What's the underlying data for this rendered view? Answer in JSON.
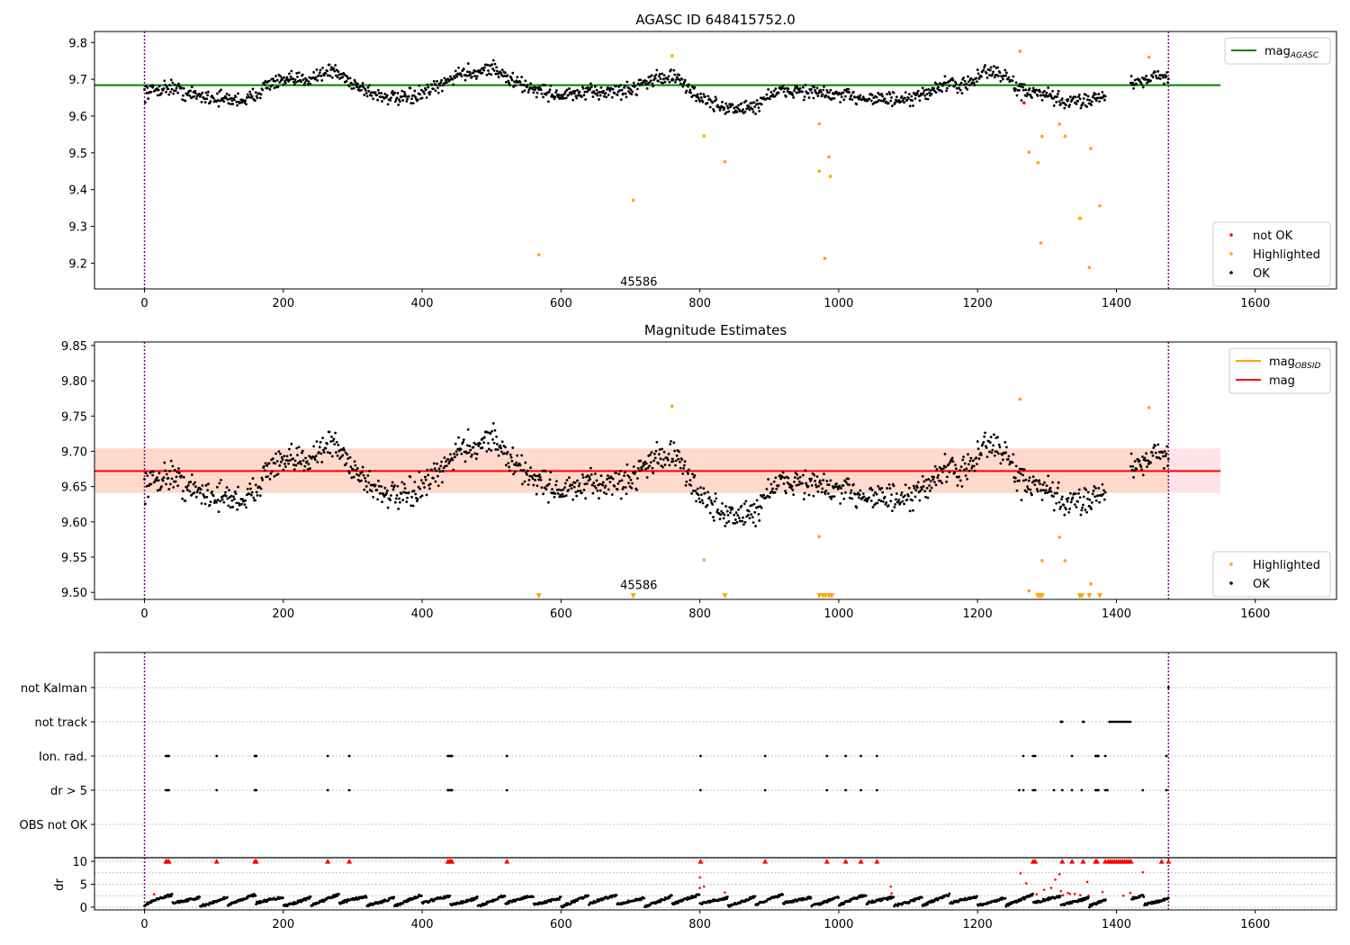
{
  "chart_data": [
    {
      "type": "scatter",
      "title": "AGASC ID 648415752.0",
      "xlim": [
        -72,
        1717
      ],
      "ylim": [
        9.13,
        9.83
      ],
      "xticks": [
        0,
        200,
        400,
        600,
        800,
        1000,
        1200,
        1400,
        1600
      ],
      "yticks": [
        9.2,
        9.3,
        9.4,
        9.5,
        9.6,
        9.7,
        9.8
      ],
      "hline": {
        "name": "mag",
        "name_sub": "AGASC",
        "value": 9.684,
        "x_end": 1550,
        "color": "#008000"
      },
      "vlines": [
        0,
        1475
      ],
      "vline_color": "#800080",
      "annotation": {
        "text": "45586",
        "x": 712,
        "y": 9.148
      },
      "legend_upper": {
        "placement": "upper-right",
        "entries": [
          {
            "label": "mag",
            "sub": "AGASC",
            "color": "#008000",
            "kind": "line"
          }
        ]
      },
      "legend_lower": {
        "placement": "lower-right",
        "entries": [
          {
            "label": "not OK",
            "color": "#ff0000",
            "kind": "dot"
          },
          {
            "label": "Highlighted",
            "color": "#ffa500",
            "kind": "dot"
          },
          {
            "label": "OK",
            "color": "#000000",
            "kind": "dot"
          }
        ]
      },
      "series": [
        {
          "name": "OK",
          "color": "#000000",
          "model": "lightcurve",
          "x_range": [
            0,
            1475
          ],
          "n": 1380,
          "offset": 0.0
        },
        {
          "name": "Highlighted",
          "color": "#ffa500",
          "points": [
            [
              568,
              9.223
            ],
            [
              704,
              9.371
            ],
            [
              760,
              9.764
            ],
            [
              806,
              9.546
            ],
            [
              836,
              9.476
            ],
            [
              972,
              9.579
            ],
            [
              972,
              9.45
            ],
            [
              980,
              9.213
            ],
            [
              986,
              9.489
            ],
            [
              988,
              9.436
            ],
            [
              1261,
              9.776
            ],
            [
              1274,
              9.502
            ],
            [
              1287,
              9.473
            ],
            [
              1291,
              9.255
            ],
            [
              1293,
              9.545
            ],
            [
              1318,
              9.578
            ],
            [
              1326,
              9.545
            ],
            [
              1347,
              9.322
            ],
            [
              1348,
              9.322
            ],
            [
              1361,
              9.188
            ],
            [
              1363,
              9.512
            ],
            [
              1376,
              9.356
            ],
            [
              1447,
              9.76
            ]
          ]
        },
        {
          "name": "not OK",
          "color": "#ff0000",
          "points": [
            [
              1267,
              9.636
            ]
          ]
        }
      ]
    },
    {
      "type": "scatter",
      "title": "Magnitude Estimates",
      "xlim": [
        -72,
        1717
      ],
      "ylim": [
        9.49,
        9.855
      ],
      "xticks": [
        0,
        200,
        400,
        600,
        800,
        1000,
        1200,
        1400,
        1600
      ],
      "yticks": [
        9.5,
        9.55,
        9.6,
        9.65,
        9.7,
        9.75,
        9.8,
        9.85
      ],
      "hline": {
        "name": "mag",
        "value": 9.672,
        "x_end": 1550,
        "color": "#ff0000"
      },
      "band_pink": {
        "low": 9.641,
        "high": 9.704,
        "x_end": 1550,
        "color": "#ffc0cb"
      },
      "band_orange": {
        "low": 9.641,
        "high": 9.704,
        "x_end": 1475,
        "color": "#ffd2b4"
      },
      "vlines": [
        0,
        1475
      ],
      "vline_color": "#800080",
      "annotation": {
        "text": "45586",
        "x": 712,
        "y": 9.502
      },
      "legend_upper": {
        "placement": "upper-right",
        "entries": [
          {
            "label": "mag",
            "sub": "OBSID",
            "color": "#ffa500",
            "kind": "line"
          },
          {
            "label": "mag",
            "color": "#ff0000",
            "kind": "line"
          }
        ]
      },
      "legend_lower": {
        "placement": "lower-right",
        "entries": [
          {
            "label": "Highlighted",
            "color": "#ffa500",
            "kind": "dot"
          },
          {
            "label": "OK",
            "color": "#000000",
            "kind": "dot"
          }
        ]
      },
      "series": [
        {
          "name": "OK",
          "color": "#000000",
          "model": "lightcurve",
          "x_range": [
            0,
            1475
          ],
          "n": 1380,
          "offset": -0.012
        },
        {
          "name": "Highlighted",
          "color": "#ffa500",
          "points": [
            [
              760,
              9.764
            ],
            [
              806,
              9.546
            ],
            [
              972,
              9.579
            ],
            [
              1261,
              9.774
            ],
            [
              1274,
              9.502
            ],
            [
              1293,
              9.545
            ],
            [
              1318,
              9.578
            ],
            [
              1326,
              9.545
            ],
            [
              1363,
              9.512
            ],
            [
              1447,
              9.762
            ]
          ]
        },
        {
          "name": "Highlighted (off scale)",
          "color": "#ffa500",
          "marker": "triangle-down",
          "y": 9.495,
          "x": [
            568,
            704,
            836,
            972,
            977,
            981,
            986,
            990,
            1287,
            1290,
            1293,
            1347,
            1350,
            1361,
            1376
          ]
        }
      ]
    },
    {
      "type": "scatter",
      "categories": [
        "not Kalman",
        "not track",
        "Ion. rad.",
        "dr > 5",
        "OBS not OK"
      ],
      "xlim": [
        -72,
        1717
      ],
      "xticks": [
        0,
        200,
        400,
        600,
        800,
        1000,
        1200,
        1400,
        1600
      ],
      "vlines": [
        0,
        1475
      ],
      "vline_color": "#800080",
      "series": [
        {
          "name": "not Kalman",
          "x": [
            1475
          ]
        },
        {
          "name": "not track",
          "x": [
            1320,
            1321,
            1322,
            1352,
            1353,
            1390,
            1393,
            1396,
            1399,
            1402,
            1405,
            1408,
            1411,
            1414,
            1417,
            1420
          ]
        },
        {
          "name": "Ion. rad.",
          "x": [
            31,
            33,
            35,
            104,
            159,
            161,
            264,
            295,
            437,
            439,
            441,
            443,
            522,
            801,
            894,
            983,
            1010,
            1032,
            1055,
            1266,
            1280,
            1283,
            1336,
            1370,
            1372,
            1374,
            1384,
            1472
          ]
        },
        {
          "name": "dr > 5",
          "x": [
            31,
            33,
            35,
            104,
            159,
            161,
            264,
            295,
            437,
            439,
            441,
            443,
            522,
            801,
            894,
            983,
            1010,
            1032,
            1055,
            1260,
            1266,
            1280,
            1283,
            1310,
            1322,
            1336,
            1350,
            1370,
            1372,
            1374,
            1384,
            1387,
            1438,
            1472
          ]
        }
      ]
    },
    {
      "type": "scatter",
      "ylabel": "dr",
      "xlim": [
        -72,
        1717
      ],
      "ylim": [
        -0.6,
        10.8
      ],
      "xticks": [
        0,
        200,
        400,
        600,
        800,
        1000,
        1200,
        1400,
        1600
      ],
      "yticks": [
        0,
        5,
        10
      ],
      "vlines": [
        0,
        1475
      ],
      "vline_color": "#800080",
      "series": [
        {
          "name": "dr",
          "color": "#000000",
          "model": "drcurve",
          "x_range": [
            0,
            1475
          ],
          "n": 1450
        },
        {
          "name": "dr > 5",
          "color": "#ff0000",
          "points": [
            [
              14,
              2.8
            ],
            [
              800,
              6.5
            ],
            [
              800,
              4.2
            ],
            [
              806,
              4.5
            ],
            [
              836,
              3.2
            ],
            [
              1075,
              4.5
            ],
            [
              1076,
              3.0
            ],
            [
              1262,
              7.4
            ],
            [
              1270,
              5.2
            ],
            [
              1285,
              2.8
            ],
            [
              1296,
              3.8
            ],
            [
              1306,
              4.2
            ],
            [
              1312,
              6.0
            ],
            [
              1318,
              7.2
            ],
            [
              1320,
              3.5
            ],
            [
              1323,
              2.6
            ],
            [
              1330,
              3.1
            ],
            [
              1333,
              2.9
            ],
            [
              1340,
              2.9
            ],
            [
              1348,
              2.6
            ],
            [
              1358,
              5.5
            ],
            [
              1360,
              2.5
            ],
            [
              1380,
              3.3
            ],
            [
              1410,
              2.5
            ],
            [
              1420,
              3.1
            ],
            [
              1438,
              7.6
            ]
          ]
        },
        {
          "name": "dr = 10",
          "color": "#ff0000",
          "marker": "triangle-up",
          "y": 10,
          "x": [
            31,
            33,
            35,
            104,
            159,
            161,
            264,
            295,
            437,
            439,
            441,
            443,
            522,
            801,
            894,
            983,
            1010,
            1032,
            1055,
            1280,
            1283,
            1322,
            1336,
            1352,
            1370,
            1372,
            1384,
            1388,
            1391,
            1394,
            1397,
            1400,
            1403,
            1406,
            1409,
            1412,
            1415,
            1418,
            1421,
            1465,
            1475
          ]
        }
      ]
    }
  ]
}
